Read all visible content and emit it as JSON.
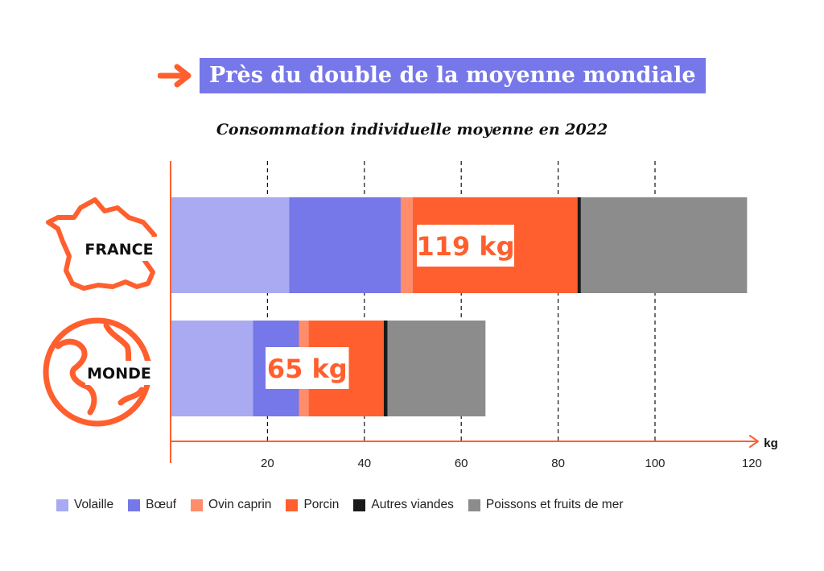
{
  "headline": "Près du double de la moyenne mondiale",
  "subtitle": "Consommation individuelle moyenne en 2022",
  "colors": {
    "accent": "#ff5f2e",
    "headline_bg": "#7677e8",
    "axis": "#ff5f2e"
  },
  "chart_data": {
    "type": "bar",
    "orientation": "horizontal",
    "stacked": true,
    "categories": [
      "FRANCE",
      "MONDE"
    ],
    "category_icons": [
      "france-map-icon",
      "globe-icon"
    ],
    "totals": [
      119,
      65
    ],
    "total_labels": [
      "119 kg",
      "65 kg"
    ],
    "series": [
      {
        "name": "Volaille",
        "color": "#a9aaf1",
        "values": [
          24.5,
          17
        ]
      },
      {
        "name": "Bœuf",
        "color": "#7677e8",
        "values": [
          23,
          9.5
        ]
      },
      {
        "name": "Ovin caprin",
        "color": "#ff8d6b",
        "values": [
          2.5,
          2
        ]
      },
      {
        "name": "Porcin",
        "color": "#ff5f2e",
        "values": [
          34,
          15.5
        ]
      },
      {
        "name": "Autres viandes",
        "color": "#1a1a1a",
        "values": [
          0.7,
          0.8
        ]
      },
      {
        "name": "Poissons et fruits de mer",
        "color": "#8c8c8c",
        "values": [
          34.3,
          20.2
        ]
      }
    ],
    "xlim": [
      0,
      120
    ],
    "xticks": [
      20,
      40,
      60,
      80,
      100,
      120
    ],
    "xlabel": "kg",
    "grid": "vertical dashed",
    "legend_position": "bottom"
  }
}
